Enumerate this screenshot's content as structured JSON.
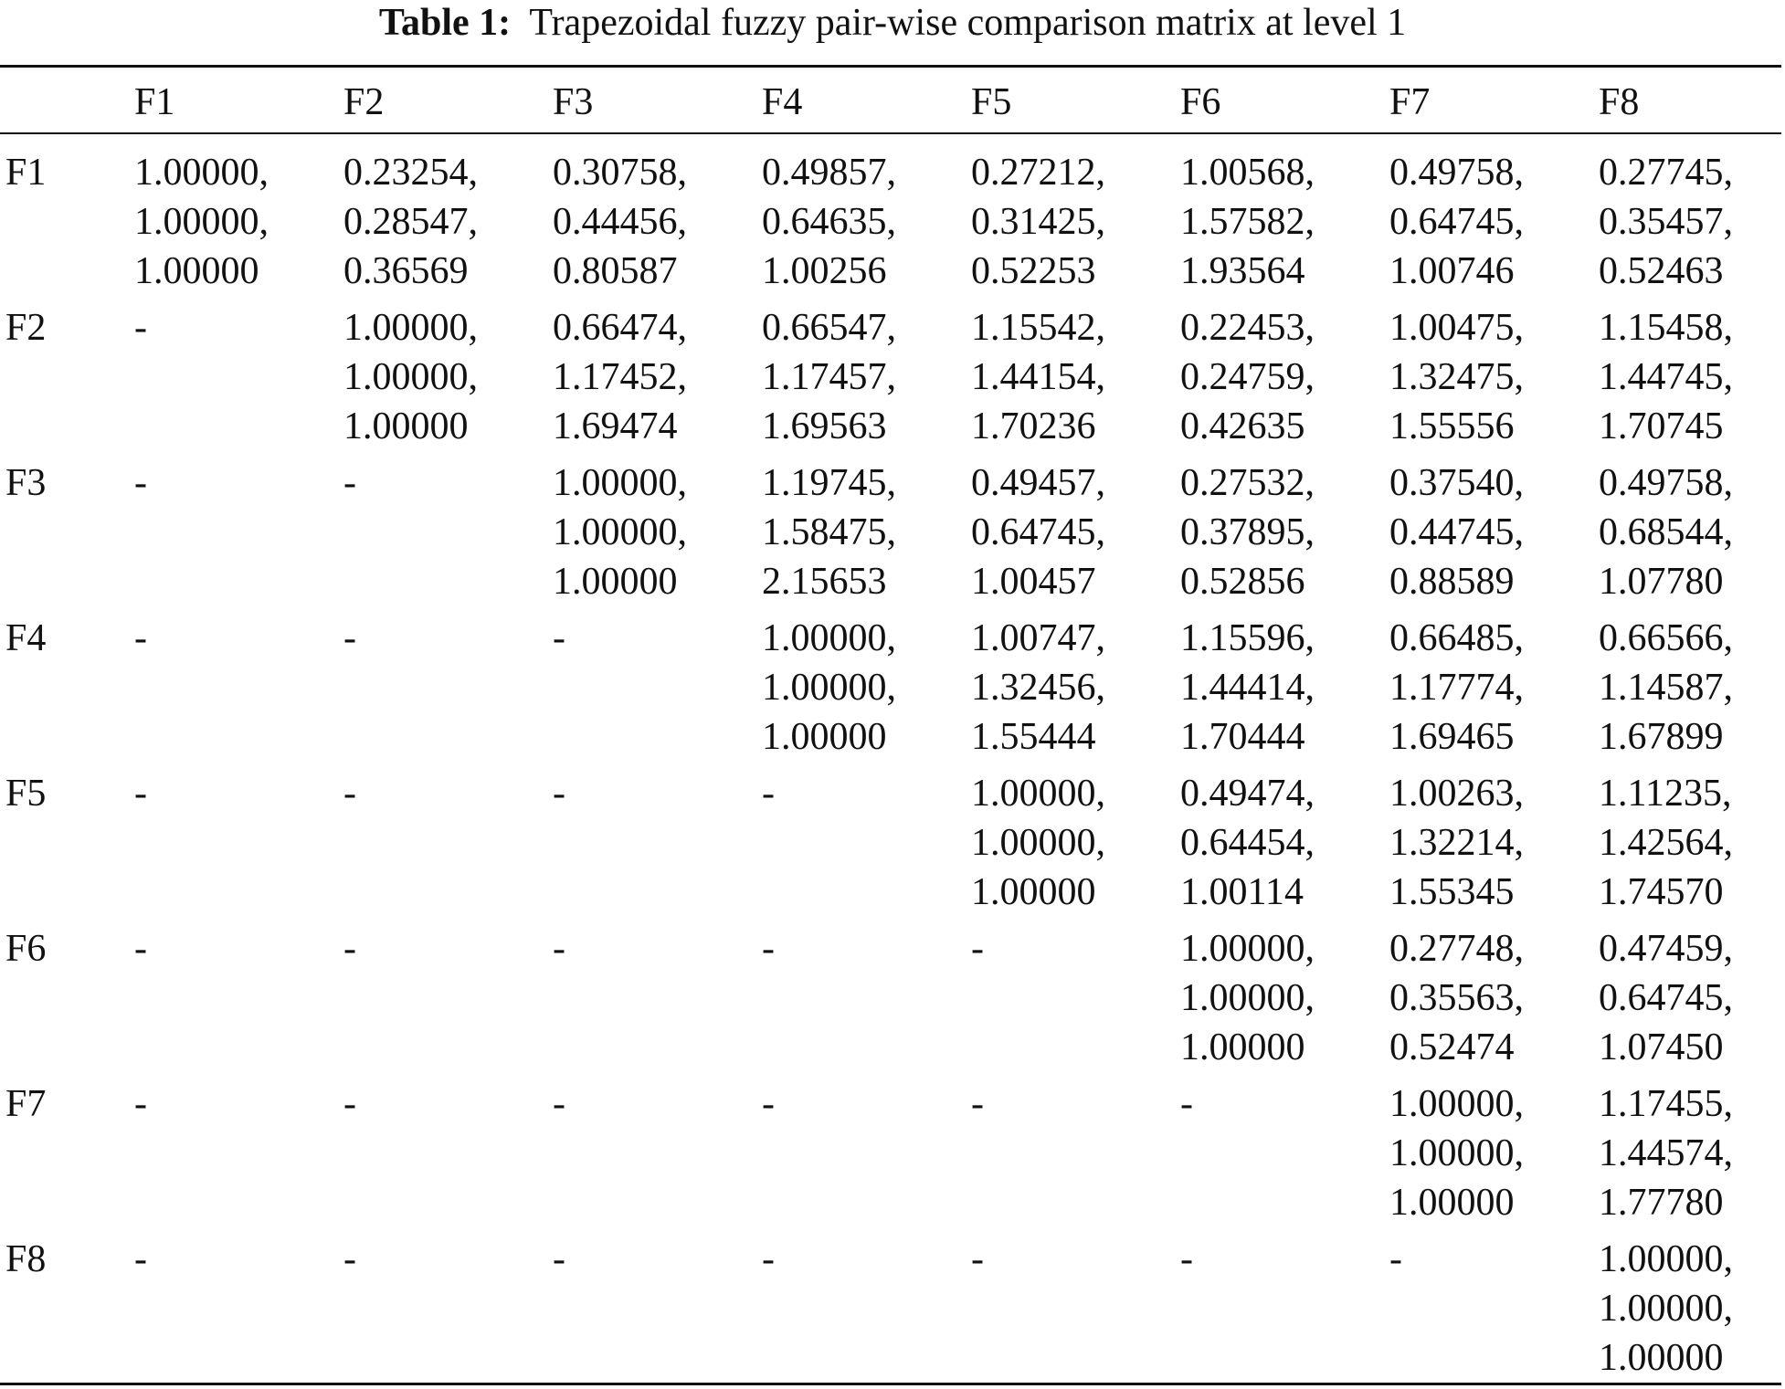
{
  "title": {
    "label": "Table 1:",
    "text": "Trapezoidal fuzzy pair-wise comparison matrix at level 1"
  },
  "table": {
    "header": [
      "F1",
      "F2",
      "F3",
      "F4",
      "F5",
      "F6",
      "F7",
      "F8"
    ],
    "rows": [
      {
        "label": "F1",
        "cells": [
          [
            "1.00000,",
            "1.00000,",
            "1.00000"
          ],
          [
            "0.23254,",
            "0.28547,",
            "0.36569"
          ],
          [
            "0.30758,",
            "0.44456,",
            "0.80587"
          ],
          [
            "0.49857,",
            "0.64635,",
            "1.00256"
          ],
          [
            "0.27212,",
            "0.31425,",
            "0.52253"
          ],
          [
            "1.00568,",
            "1.57582,",
            "1.93564"
          ],
          [
            "0.49758,",
            "0.64745,",
            "1.00746"
          ],
          [
            "0.27745,",
            "0.35457,",
            "0.52463"
          ]
        ]
      },
      {
        "label": "F2",
        "cells": [
          "-",
          [
            "1.00000,",
            "1.00000,",
            "1.00000"
          ],
          [
            "0.66474,",
            "1.17452,",
            "1.69474"
          ],
          [
            "0.66547,",
            "1.17457,",
            "1.69563"
          ],
          [
            "1.15542,",
            "1.44154,",
            "1.70236"
          ],
          [
            "0.22453,",
            "0.24759,",
            "0.42635"
          ],
          [
            "1.00475,",
            "1.32475,",
            "1.55556"
          ],
          [
            "1.15458,",
            "1.44745,",
            "1.70745"
          ]
        ]
      },
      {
        "label": "F3",
        "cells": [
          "-",
          "-",
          [
            "1.00000,",
            "1.00000,",
            "1.00000"
          ],
          [
            "1.19745,",
            "1.58475,",
            "2.15653"
          ],
          [
            "0.49457,",
            "0.64745,",
            "1.00457"
          ],
          [
            "0.27532,",
            "0.37895,",
            "0.52856"
          ],
          [
            "0.37540,",
            "0.44745,",
            "0.88589"
          ],
          [
            "0.49758,",
            "0.68544,",
            "1.07780"
          ]
        ]
      },
      {
        "label": "F4",
        "cells": [
          "-",
          "-",
          "-",
          [
            "1.00000,",
            "1.00000,",
            "1.00000"
          ],
          [
            "1.00747,",
            "1.32456,",
            "1.55444"
          ],
          [
            "1.15596,",
            "1.44414,",
            "1.70444"
          ],
          [
            "0.66485,",
            "1.17774,",
            "1.69465"
          ],
          [
            "0.66566,",
            "1.14587,",
            "1.67899"
          ]
        ]
      },
      {
        "label": "F5",
        "cells": [
          "-",
          "-",
          "-",
          "-",
          [
            "1.00000,",
            "1.00000,",
            "1.00000"
          ],
          [
            "0.49474,",
            "0.64454,",
            "1.00114"
          ],
          [
            "1.00263,",
            "1.32214,",
            "1.55345"
          ],
          [
            "1.11235,",
            "1.42564,",
            "1.74570"
          ]
        ]
      },
      {
        "label": "F6",
        "cells": [
          "-",
          "-",
          "-",
          "-",
          "-",
          [
            "1.00000,",
            "1.00000,",
            "1.00000"
          ],
          [
            "0.27748,",
            "0.35563,",
            "0.52474"
          ],
          [
            "0.47459,",
            "0.64745,",
            "1.07450"
          ]
        ]
      },
      {
        "label": "F7",
        "cells": [
          "-",
          "-",
          "-",
          "-",
          "-",
          "-",
          [
            "1.00000,",
            "1.00000,",
            "1.00000"
          ],
          [
            "1.17455,",
            "1.44574,",
            "1.77780"
          ]
        ]
      },
      {
        "label": "F8",
        "cells": [
          "-",
          "-",
          "-",
          "-",
          "-",
          "-",
          "-",
          [
            "1.00000,",
            "1.00000,",
            "1.00000"
          ]
        ]
      }
    ]
  }
}
